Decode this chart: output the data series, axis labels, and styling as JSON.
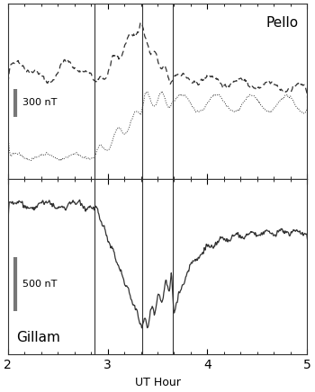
{
  "title_top": "Pello",
  "title_bottom": "Gillam",
  "xlabel": "UT Hour",
  "xlim": [
    2,
    5
  ],
  "xticks": [
    2,
    3,
    4,
    5
  ],
  "vlines": [
    2.87,
    3.35,
    3.65
  ],
  "scale_bar_top_label": "300 nT",
  "scale_bar_bottom_label": "500 nT",
  "background_color": "#ffffff",
  "line_color": "#333333",
  "scale_bar_color": "#777777"
}
